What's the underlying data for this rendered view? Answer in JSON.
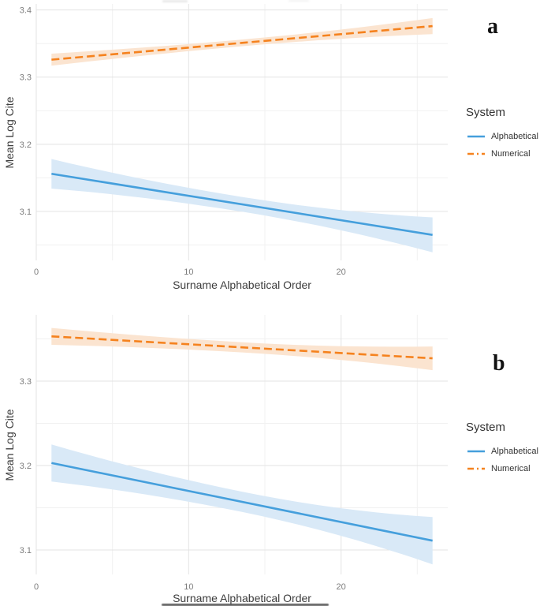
{
  "legend": {
    "title": "System",
    "items": [
      {
        "label": "Alphabetical",
        "style": "solid",
        "color": "#459FDC"
      },
      {
        "label": "Numerical",
        "style": "dashed",
        "color": "#F5821E"
      }
    ]
  },
  "colors": {
    "grid_major": "#e3e3e3",
    "grid_minor": "#f1f1f1",
    "tick_label": "#7c7c7c",
    "axis_title": "#3d3d3d",
    "alphabetical_line": "#459FDC",
    "alphabetical_band": "#D9E9F7",
    "numerical_line": "#F5821E",
    "numerical_band": "#FBE4D0"
  },
  "chart_data": [
    {
      "id": "panel-a",
      "panel_label": "a",
      "type": "line",
      "xlabel": "Surname Alphabetical Order",
      "ylabel": "Mean Log Cite",
      "xlim": [
        0,
        27
      ],
      "ylim": [
        3.027,
        3.409
      ],
      "x_major_ticks": [
        0,
        10,
        20
      ],
      "x_minor_ticks": [
        5,
        15,
        25
      ],
      "y_major_ticks": [
        3.4,
        3.3,
        3.2,
        3.1
      ],
      "y_minor_ticks": [
        3.35,
        3.25,
        3.15,
        3.05
      ],
      "grid": true,
      "legend_position": "right",
      "series": [
        {
          "name": "Alphabetical",
          "line_style": "solid",
          "color": "#459FDC",
          "band_color": "#D9E9F7",
          "x": [
            1,
            26
          ],
          "y": [
            3.156,
            3.065
          ],
          "ci_halfwidth": {
            "start": 0.022,
            "mid": 0.011,
            "end": 0.026
          }
        },
        {
          "name": "Numerical",
          "line_style": "dashed",
          "color": "#F5821E",
          "band_color": "#FBE4D0",
          "x": [
            1,
            26
          ],
          "y": [
            3.326,
            3.376
          ],
          "ci_halfwidth": {
            "start": 0.009,
            "mid": 0.005,
            "end": 0.012
          }
        }
      ]
    },
    {
      "id": "panel-b",
      "panel_label": "b",
      "type": "line",
      "xlabel": "Surname Alphabetical Order",
      "ylabel": "Mean Log Cite",
      "xlim": [
        0,
        27
      ],
      "ylim": [
        3.071,
        3.3785
      ],
      "x_major_ticks": [
        0,
        10,
        20
      ],
      "x_minor_ticks": [
        5,
        15,
        25
      ],
      "y_major_ticks": [
        3.3,
        3.2,
        3.1
      ],
      "y_minor_ticks": [
        3.35,
        3.25,
        3.15
      ],
      "grid": true,
      "legend_position": "right",
      "series": [
        {
          "name": "Alphabetical",
          "line_style": "solid",
          "color": "#459FDC",
          "band_color": "#D9E9F7",
          "x": [
            1,
            26
          ],
          "y": [
            3.203,
            3.111
          ],
          "ci_halfwidth": {
            "start": 0.022,
            "mid": 0.012,
            "end": 0.028
          }
        },
        {
          "name": "Numerical",
          "line_style": "dashed",
          "color": "#F5821E",
          "band_color": "#FBE4D0",
          "x": [
            1,
            26
          ],
          "y": [
            3.353,
            3.327
          ],
          "ci_halfwidth": {
            "start": 0.01,
            "mid": 0.006,
            "end": 0.014
          }
        }
      ]
    }
  ]
}
